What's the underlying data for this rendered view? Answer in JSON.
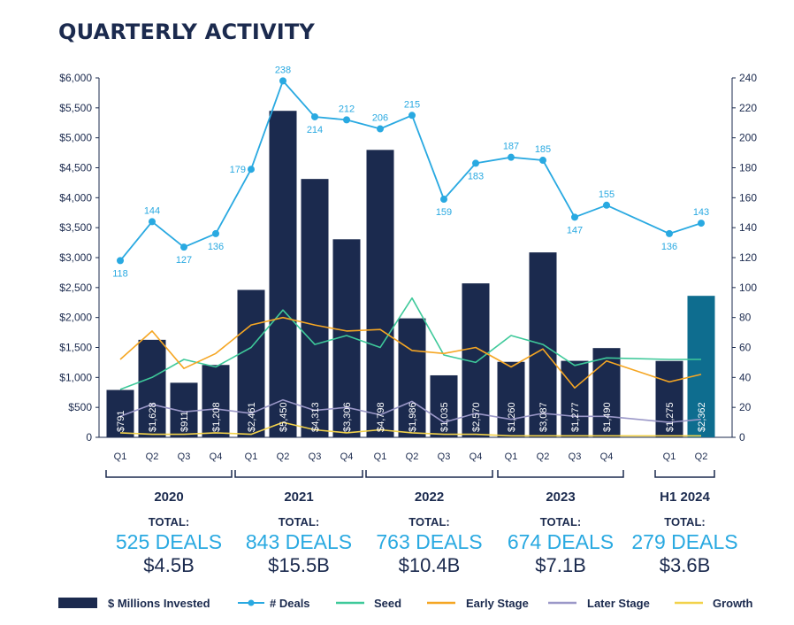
{
  "title": "QUARTERLY ACTIVITY",
  "chart_data": {
    "type": "bar",
    "categories": [
      "Q1",
      "Q2",
      "Q3",
      "Q4",
      "Q1",
      "Q2",
      "Q3",
      "Q4",
      "Q1",
      "Q2",
      "Q3",
      "Q4",
      "Q1",
      "Q2",
      "Q3",
      "Q4",
      "Q1",
      "Q2"
    ],
    "y_left": {
      "range": [
        0,
        6000
      ],
      "ticks": [
        "0",
        "$500",
        "$1,000",
        "$1,500",
        "$2,000",
        "$2,500",
        "$3,000",
        "$3,500",
        "$4,000",
        "$4,500",
        "$5,000",
        "$5,500",
        "$6,000"
      ]
    },
    "y_right": {
      "range": [
        0,
        240
      ],
      "ticks": [
        "0",
        "20",
        "40",
        "60",
        "80",
        "100",
        "120",
        "140",
        "160",
        "180",
        "200",
        "220",
        "240"
      ]
    },
    "series": [
      {
        "name": "$ Millions Invested",
        "type": "bar",
        "axis": "left",
        "values": [
          791,
          1628,
          911,
          1208,
          2461,
          5450,
          4313,
          3306,
          4798,
          1986,
          1035,
          2570,
          1260,
          3087,
          1277,
          1490,
          1275,
          2362
        ],
        "labels": [
          "$791",
          "$1,628",
          "$911",
          "$1,208",
          "$2,461",
          "$5,450",
          "$4,313",
          "$3,306",
          "$4,798",
          "$1,986",
          "$1,035",
          "$2,570",
          "$1,260",
          "$3,087",
          "$1,277",
          "$1,490",
          "$1,275",
          "$2,362"
        ]
      },
      {
        "name": "# Deals",
        "type": "line",
        "axis": "right",
        "values": [
          118,
          144,
          127,
          136,
          179,
          238,
          214,
          212,
          206,
          215,
          159,
          183,
          187,
          185,
          147,
          155,
          136,
          143
        ]
      },
      {
        "name": "Seed",
        "type": "line",
        "axis": "right",
        "values": [
          32,
          40,
          52,
          47,
          60,
          85,
          62,
          68,
          60,
          93,
          55,
          50,
          68,
          62,
          48,
          53,
          52,
          52
        ]
      },
      {
        "name": "Early Stage",
        "type": "line",
        "axis": "right",
        "values": [
          52,
          71,
          46,
          56,
          75,
          80,
          75,
          71,
          72,
          58,
          56,
          60,
          47,
          59,
          33,
          51,
          37,
          42
        ]
      },
      {
        "name": "Later Stage",
        "type": "line",
        "axis": "right",
        "values": [
          14,
          22,
          17,
          19,
          16,
          25,
          18,
          20,
          15,
          24,
          10,
          16,
          12,
          16,
          14,
          14,
          10,
          12
        ]
      },
      {
        "name": "Growth",
        "type": "line",
        "axis": "right",
        "values": [
          3,
          2,
          2,
          3,
          2,
          10,
          5,
          3,
          5,
          3,
          2,
          2,
          1,
          1,
          1,
          1,
          1,
          1
        ]
      }
    ],
    "groups": [
      {
        "year": "2020",
        "total_label": "TOTAL:",
        "deals": "525 DEALS",
        "invested": "$4.5B"
      },
      {
        "year": "2021",
        "total_label": "TOTAL:",
        "deals": "843 DEALS",
        "invested": "$15.5B"
      },
      {
        "year": "2022",
        "total_label": "TOTAL:",
        "deals": "763 DEALS",
        "invested": "$10.4B"
      },
      {
        "year": "2023",
        "total_label": "TOTAL:",
        "deals": "674 DEALS",
        "invested": "$7.1B"
      },
      {
        "year": "H1 2024",
        "total_label": "TOTAL:",
        "deals": "279 DEALS",
        "invested": "$3.6B"
      }
    ],
    "legend_position": "bottom",
    "grid": false
  },
  "colors": {
    "bar": "#1b2a4e",
    "bar_highlight": "#0e6d8f",
    "deals": "#29a9e1",
    "seed": "#3ec99a",
    "early": "#f5a623",
    "later": "#9b98c8",
    "growth": "#f2d24b",
    "axis": "#1b2a4e"
  }
}
